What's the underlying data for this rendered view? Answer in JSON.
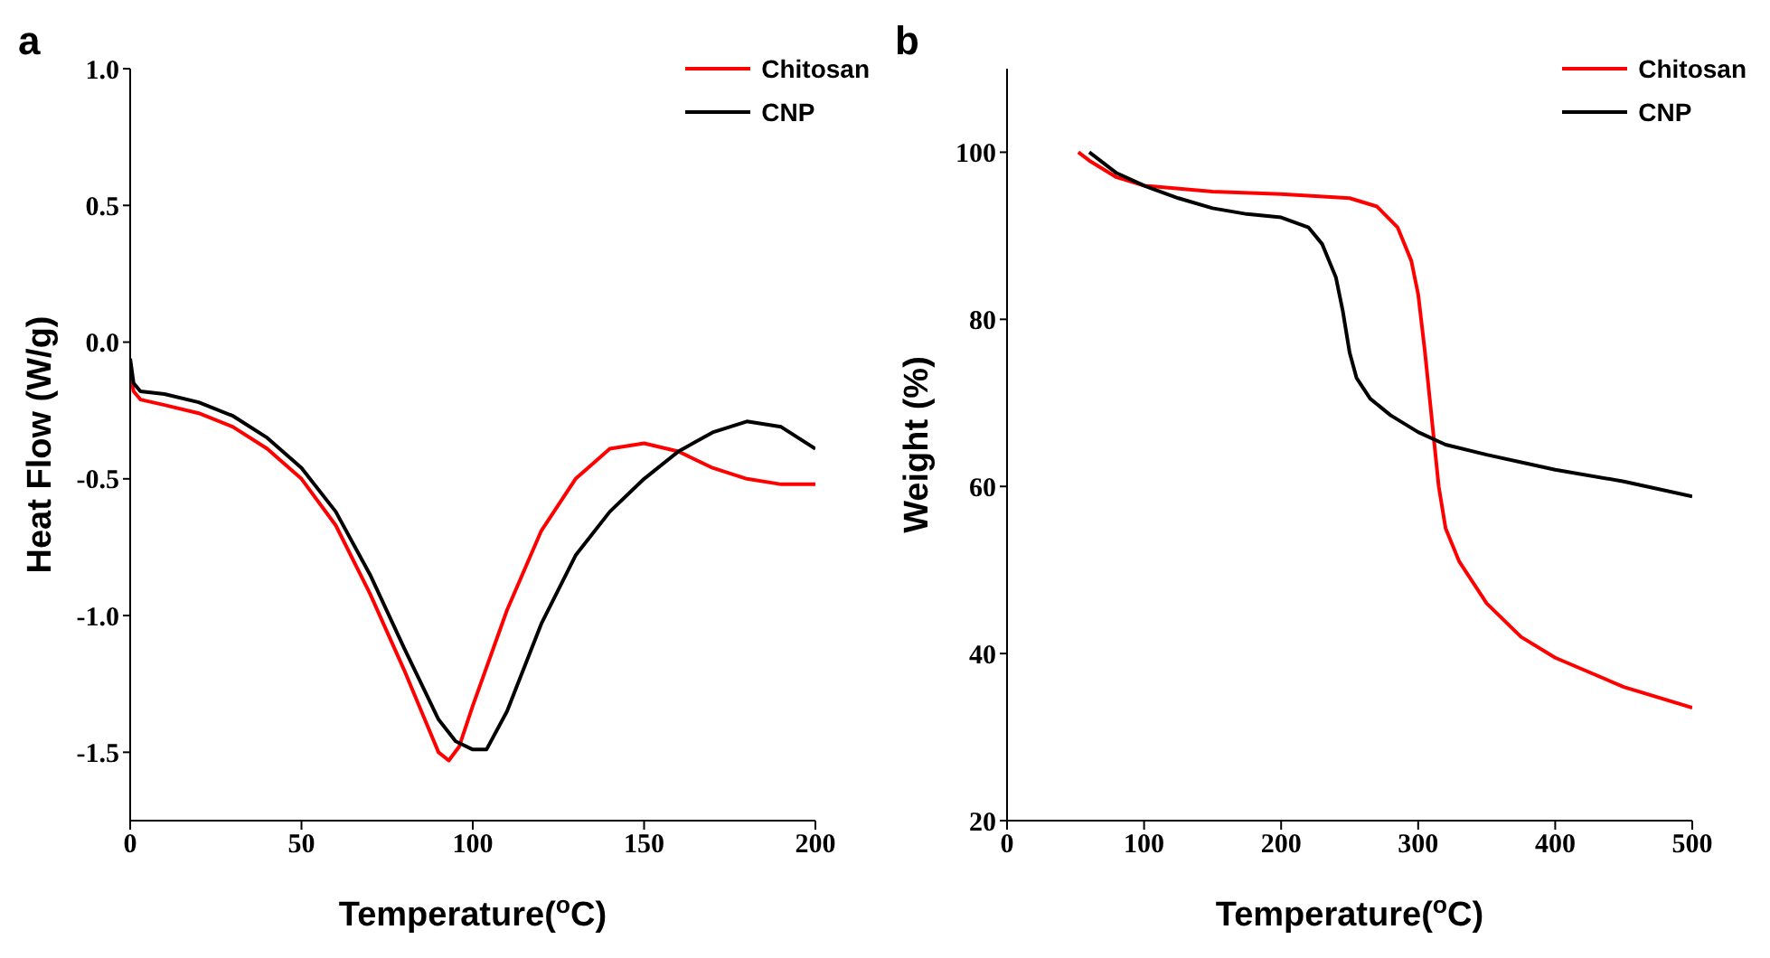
{
  "chart_data": [
    {
      "type": "line",
      "title": "a",
      "xlabel": "Temperature($^{o}$C)",
      "ylabel": "Heat Flow (W/g)",
      "xlim": [
        0,
        200
      ],
      "xticks": [
        0,
        50,
        100,
        150,
        200
      ],
      "ylim": [
        -1.75,
        1.0
      ],
      "yticks": [
        {
          "value": -1.5,
          "label": "-1.5"
        },
        {
          "value": -1.0,
          "label": "-1.0"
        },
        {
          "value": -0.5,
          "label": "-0.5"
        },
        {
          "value": 0,
          "label": "0.0"
        },
        {
          "value": 0.5,
          "label": "0.5"
        },
        {
          "value": 1.0,
          "label": "1.0"
        }
      ],
      "grid": false,
      "legend": "top right",
      "marker": "none",
      "line_style": "solid",
      "series": [
        {
          "name": "Chitosan",
          "color": "#ff0000",
          "x": [
            0,
            1,
            3,
            10,
            20,
            30,
            40,
            50,
            60,
            70,
            80,
            85,
            90,
            93,
            96,
            100,
            110,
            120,
            130,
            140,
            150,
            160,
            170,
            180,
            190,
            200
          ],
          "values": [
            -0.12,
            -0.18,
            -0.21,
            -0.23,
            -0.26,
            -0.31,
            -0.39,
            -0.5,
            -0.67,
            -0.92,
            -1.2,
            -1.35,
            -1.5,
            -1.53,
            -1.48,
            -1.33,
            -0.98,
            -0.69,
            -0.5,
            -0.39,
            -0.37,
            -0.4,
            -0.46,
            -0.5,
            -0.52,
            -0.52
          ]
        },
        {
          "name": "CNP",
          "color": "#000000",
          "x": [
            0,
            1,
            3,
            10,
            20,
            30,
            40,
            50,
            60,
            70,
            80,
            90,
            95,
            100,
            104,
            110,
            120,
            130,
            140,
            150,
            160,
            170,
            180,
            190,
            200
          ],
          "values": [
            -0.06,
            -0.15,
            -0.18,
            -0.19,
            -0.22,
            -0.27,
            -0.35,
            -0.46,
            -0.62,
            -0.85,
            -1.12,
            -1.38,
            -1.46,
            -1.49,
            -1.49,
            -1.35,
            -1.03,
            -0.78,
            -0.62,
            -0.5,
            -0.4,
            -0.33,
            -0.29,
            -0.31,
            -0.39
          ]
        }
      ]
    },
    {
      "type": "line",
      "title": "b",
      "xlabel": "Temperature($^{o}$C)",
      "ylabel": "Weight (%)",
      "xlim": [
        0,
        500
      ],
      "xticks": [
        0,
        100,
        200,
        300,
        400,
        500
      ],
      "ylim": [
        20,
        110
      ],
      "yticks": [
        20,
        40,
        60,
        80,
        100
      ],
      "grid": false,
      "legend": "top right",
      "marker": "none",
      "line_style": "solid",
      "series": [
        {
          "name": "Chitosan",
          "color": "#ff0000",
          "x": [
            52,
            60,
            80,
            100,
            150,
            200,
            250,
            270,
            285,
            295,
            300,
            305,
            310,
            315,
            320,
            330,
            350,
            375,
            400,
            450,
            500
          ],
          "values": [
            100,
            99,
            97,
            96,
            95.3,
            95,
            94.5,
            93.5,
            91,
            87,
            83,
            76,
            68,
            60,
            55,
            51,
            46,
            42,
            39.5,
            36,
            33.5
          ]
        },
        {
          "name": "CNP",
          "color": "#000000",
          "x": [
            60,
            80,
            100,
            125,
            150,
            175,
            200,
            220,
            230,
            240,
            245,
            250,
            255,
            265,
            280,
            300,
            320,
            350,
            400,
            450,
            500
          ],
          "values": [
            100,
            97.5,
            96,
            94.5,
            93.3,
            92.6,
            92.2,
            91,
            89,
            85,
            81,
            76,
            73,
            70.5,
            68.5,
            66.5,
            65,
            63.8,
            62,
            60.6,
            58.8
          ]
        }
      ]
    }
  ]
}
